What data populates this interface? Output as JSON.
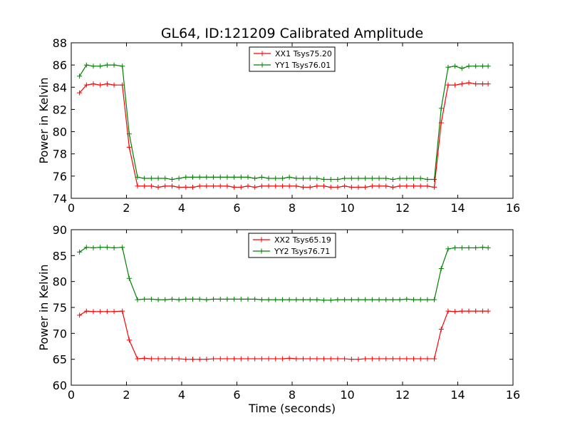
{
  "figure": {
    "title": "GL64, ID:121209 Calibrated Amplitude"
  },
  "chart_data": [
    {
      "type": "line",
      "xlabel": "",
      "ylabel": "Power in Kelvin",
      "xlim": [
        0,
        16
      ],
      "ylim": [
        74,
        88
      ],
      "xticks": [
        0,
        2,
        4,
        6,
        8,
        10,
        12,
        14,
        16
      ],
      "yticks": [
        74,
        76,
        78,
        80,
        82,
        84,
        86,
        88
      ],
      "grid": false,
      "legend_position": "top-center",
      "x": [
        0.3,
        0.55,
        0.8,
        1.05,
        1.3,
        1.55,
        1.85,
        2.1,
        2.4,
        2.65,
        2.9,
        3.15,
        3.4,
        3.65,
        3.9,
        4.15,
        4.4,
        4.65,
        4.9,
        5.15,
        5.4,
        5.65,
        5.9,
        6.15,
        6.4,
        6.65,
        6.9,
        7.15,
        7.4,
        7.65,
        7.9,
        8.15,
        8.4,
        8.65,
        8.9,
        9.15,
        9.4,
        9.65,
        9.9,
        10.15,
        10.4,
        10.65,
        10.9,
        11.15,
        11.4,
        11.65,
        11.9,
        12.15,
        12.4,
        12.65,
        12.9,
        13.15,
        13.4,
        13.65,
        13.9,
        14.15,
        14.4,
        14.65,
        14.9,
        15.1
      ],
      "series": [
        {
          "name": "XX1 Tsys75.20",
          "color": "#ff0000",
          "values": [
            83.5,
            84.2,
            84.3,
            84.2,
            84.3,
            84.2,
            84.2,
            78.6,
            75.1,
            75.1,
            75.1,
            75.0,
            75.1,
            75.1,
            75.0,
            75.0,
            75.0,
            75.1,
            75.1,
            75.1,
            75.1,
            75.1,
            75.0,
            75.0,
            75.1,
            75.0,
            75.1,
            75.1,
            75.1,
            75.1,
            75.1,
            75.1,
            75.0,
            75.0,
            75.1,
            75.1,
            75.0,
            75.0,
            75.1,
            75.0,
            75.0,
            75.0,
            75.1,
            75.1,
            75.1,
            75.0,
            75.1,
            75.1,
            75.1,
            75.1,
            75.1,
            75.0,
            80.8,
            84.2,
            84.2,
            84.3,
            84.4,
            84.3,
            84.3,
            84.3
          ]
        },
        {
          "name": "YY1 Tsys76.01",
          "color": "#008000",
          "values": [
            85.0,
            86.0,
            85.9,
            85.9,
            86.0,
            86.0,
            85.9,
            79.8,
            75.9,
            75.8,
            75.8,
            75.8,
            75.8,
            75.7,
            75.8,
            75.9,
            75.9,
            75.9,
            75.9,
            75.9,
            75.9,
            75.9,
            75.9,
            75.9,
            75.9,
            75.8,
            75.9,
            75.8,
            75.8,
            75.8,
            75.9,
            75.8,
            75.8,
            75.8,
            75.8,
            75.7,
            75.7,
            75.7,
            75.8,
            75.8,
            75.8,
            75.8,
            75.8,
            75.8,
            75.8,
            75.7,
            75.8,
            75.8,
            75.8,
            75.8,
            75.7,
            75.7,
            82.1,
            85.8,
            85.9,
            85.7,
            85.9,
            85.9,
            85.9,
            85.9
          ]
        }
      ]
    },
    {
      "type": "line",
      "xlabel": "Time (seconds)",
      "ylabel": "Power in Kelvin",
      "xlim": [
        0,
        16
      ],
      "ylim": [
        60,
        90
      ],
      "xticks": [
        0,
        2,
        4,
        6,
        8,
        10,
        12,
        14,
        16
      ],
      "yticks": [
        60,
        65,
        70,
        75,
        80,
        85,
        90
      ],
      "grid": false,
      "legend_position": "top-center",
      "x": [
        0.3,
        0.55,
        0.8,
        1.05,
        1.3,
        1.55,
        1.85,
        2.1,
        2.4,
        2.65,
        2.9,
        3.15,
        3.4,
        3.65,
        3.9,
        4.15,
        4.4,
        4.65,
        4.9,
        5.15,
        5.4,
        5.65,
        5.9,
        6.15,
        6.4,
        6.65,
        6.9,
        7.15,
        7.4,
        7.65,
        7.9,
        8.15,
        8.4,
        8.65,
        8.9,
        9.15,
        9.4,
        9.65,
        9.9,
        10.15,
        10.4,
        10.65,
        10.9,
        11.15,
        11.4,
        11.65,
        11.9,
        12.15,
        12.4,
        12.65,
        12.9,
        13.15,
        13.4,
        13.65,
        13.9,
        14.15,
        14.4,
        14.65,
        14.9,
        15.1
      ],
      "series": [
        {
          "name": "XX2 Tsys65.19",
          "color": "#ff0000",
          "values": [
            73.5,
            74.3,
            74.2,
            74.2,
            74.2,
            74.2,
            74.3,
            68.7,
            65.1,
            65.2,
            65.1,
            65.1,
            65.1,
            65.1,
            65.1,
            65.0,
            65.0,
            65.0,
            65.0,
            65.1,
            65.1,
            65.1,
            65.1,
            65.1,
            65.1,
            65.1,
            65.1,
            65.1,
            65.1,
            65.1,
            65.2,
            65.1,
            65.1,
            65.1,
            65.1,
            65.1,
            65.1,
            65.1,
            65.1,
            65.0,
            65.0,
            65.1,
            65.1,
            65.1,
            65.1,
            65.1,
            65.1,
            65.1,
            65.1,
            65.1,
            65.1,
            65.1,
            70.8,
            74.3,
            74.2,
            74.3,
            74.3,
            74.3,
            74.3,
            74.3
          ]
        },
        {
          "name": "YY2 Tsys76.71",
          "color": "#008000",
          "values": [
            85.7,
            86.6,
            86.5,
            86.6,
            86.6,
            86.5,
            86.6,
            80.6,
            76.5,
            76.6,
            76.6,
            76.5,
            76.5,
            76.6,
            76.5,
            76.6,
            76.6,
            76.6,
            76.5,
            76.6,
            76.6,
            76.6,
            76.6,
            76.6,
            76.6,
            76.6,
            76.5,
            76.5,
            76.5,
            76.5,
            76.5,
            76.5,
            76.5,
            76.5,
            76.5,
            76.4,
            76.4,
            76.5,
            76.5,
            76.5,
            76.5,
            76.5,
            76.5,
            76.5,
            76.5,
            76.5,
            76.5,
            76.6,
            76.5,
            76.5,
            76.5,
            76.5,
            82.5,
            86.3,
            86.5,
            86.5,
            86.5,
            86.5,
            86.6,
            86.5
          ]
        }
      ]
    }
  ]
}
